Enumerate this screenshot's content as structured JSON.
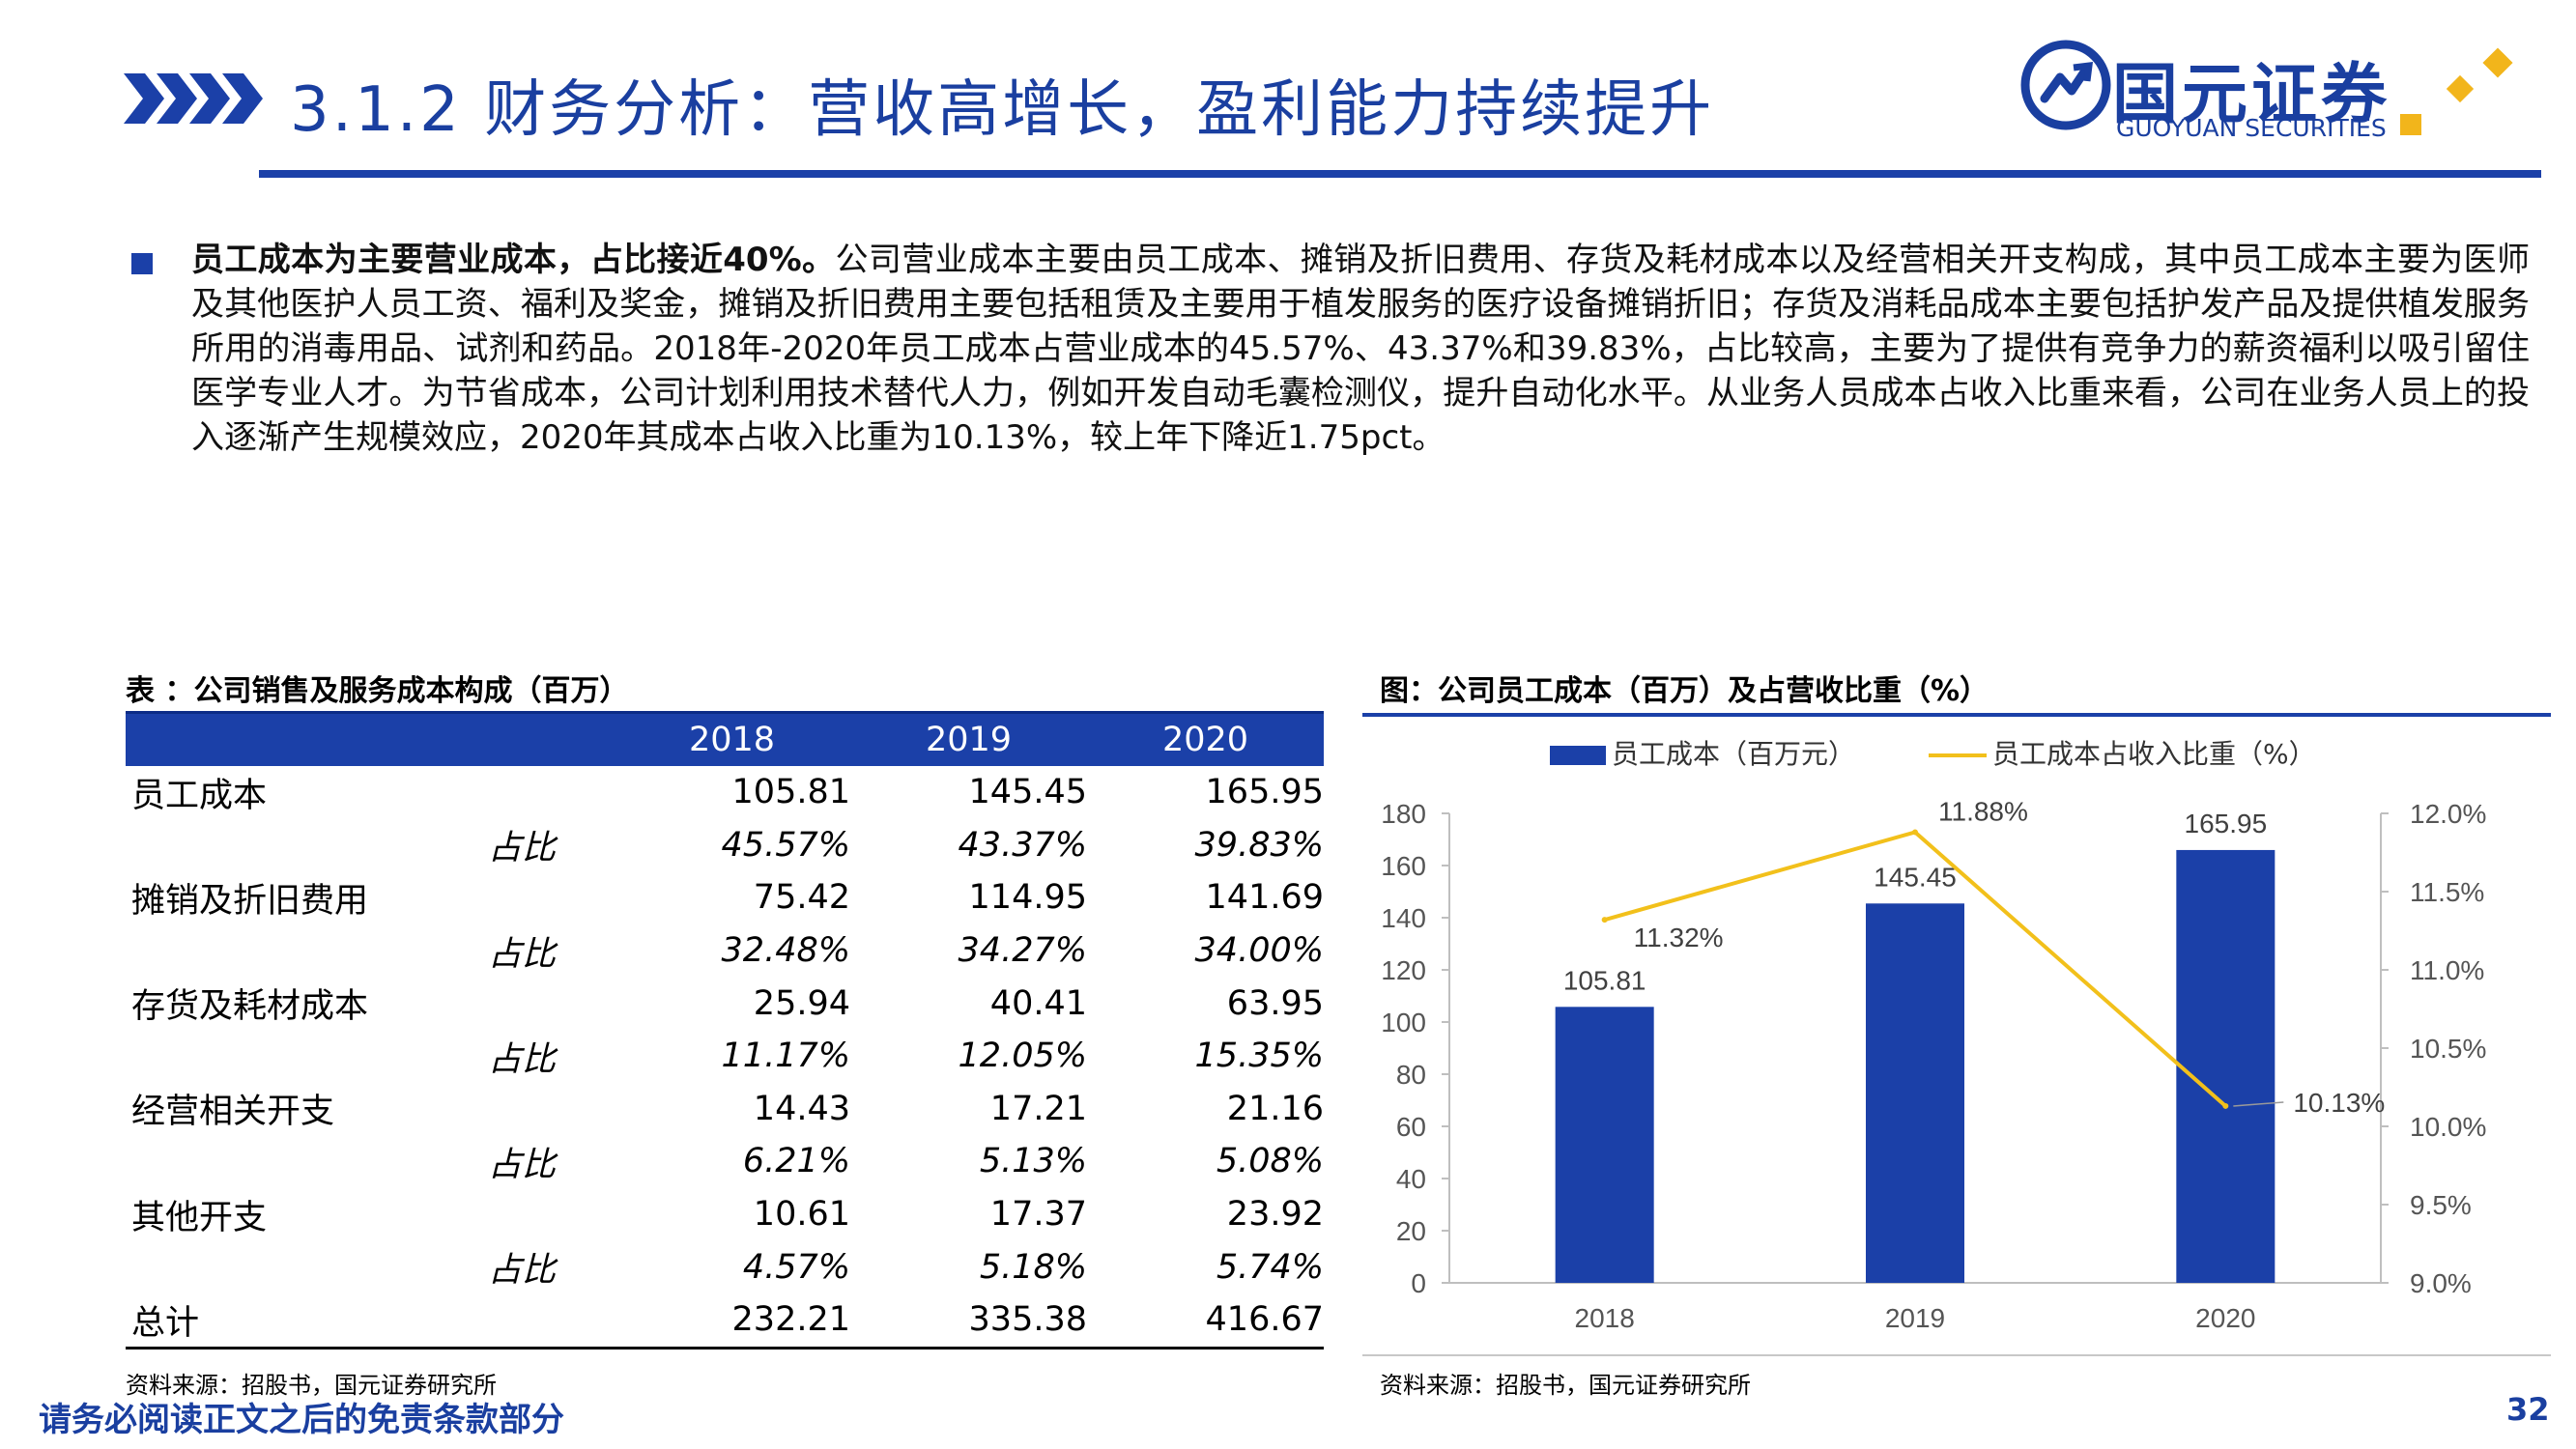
{
  "header": {
    "title": "3.1.2 财务分析：营收高增长，盈利能力持续提升",
    "logo_cn": "国元证券",
    "logo_en": "GUOYUAN SECURITIES"
  },
  "paragraph": {
    "lead": "员工成本为主要营业成本，占比接近40%。",
    "body": "公司营业成本主要由员工成本、摊销及折旧费用、存货及耗材成本以及经营相关开支构成，其中员工成本主要为医师及其他医护人员工资、福利及奖金，摊销及折旧费用主要包括租赁及主要用于植发服务的医疗设备摊销折旧；存货及消耗品成本主要包括护发产品及提供植发服务所用的消毒用品、试剂和药品。2018年-2020年员工成本占营业成本的45.57%、43.37%和39.83%，占比较高，主要为了提供有竞争力的薪资福利以吸引留住医学专业人才。为节省成本，公司计划利用技术替代人力，例如开发自动毛囊检测仪，提升自动化水平。从业务人员成本占收入比重来看，公司在业务人员上的投入逐渐产生规模效应，2020年其成本占收入比重为10.13%，较上年下降近1.75pct。"
  },
  "table": {
    "caption": "表 ：公司销售及服务成本构成（百万）",
    "headers": [
      "",
      "2018",
      "2019",
      "2020"
    ],
    "rows": [
      {
        "label": "员工成本",
        "v": [
          "105.81",
          "145.45",
          "165.95"
        ]
      },
      {
        "label": "占比",
        "v": [
          "45.57%",
          "43.37%",
          "39.83%"
        ]
      },
      {
        "label": "摊销及折旧费用",
        "v": [
          "75.42",
          "114.95",
          "141.69"
        ]
      },
      {
        "label": "占比",
        "v": [
          "32.48%",
          "34.27%",
          "34.00%"
        ]
      },
      {
        "label": "存货及耗材成本",
        "v": [
          "25.94",
          "40.41",
          "63.95"
        ]
      },
      {
        "label": "占比",
        "v": [
          "11.17%",
          "12.05%",
          "15.35%"
        ]
      },
      {
        "label": "经营相关开支",
        "v": [
          "14.43",
          "17.21",
          "21.16"
        ]
      },
      {
        "label": "占比",
        "v": [
          "6.21%",
          "5.13%",
          "5.08%"
        ]
      },
      {
        "label": "其他开支",
        "v": [
          "10.61",
          "17.37",
          "23.92"
        ]
      },
      {
        "label": "占比",
        "v": [
          "4.57%",
          "5.18%",
          "5.74%"
        ]
      },
      {
        "label": "总计",
        "v": [
          "232.21",
          "335.38",
          "416.67"
        ]
      }
    ],
    "source": "资料来源：招股书，国元证券研究所"
  },
  "chart": {
    "caption": "图：公司员工成本（百万）及占营收比重（%）",
    "source": "资料来源：招股书，国元证券研究所"
  },
  "chart_data": {
    "type": "bar",
    "categories": [
      "2018",
      "2019",
      "2020"
    ],
    "series": [
      {
        "name": "员工成本（百万元）",
        "type": "bar",
        "axis": "left",
        "values": [
          105.81,
          145.45,
          165.95
        ],
        "labels": [
          "105.81",
          "145.45",
          "165.95"
        ],
        "color": "#1b40a8"
      },
      {
        "name": "员工成本占收入比重（%）",
        "type": "line",
        "axis": "right",
        "values": [
          11.32,
          11.88,
          10.13
        ],
        "labels": [
          "11.32%",
          "11.88%",
          "10.13%"
        ],
        "color": "#f2c01b"
      }
    ],
    "left_axis": {
      "ylim": [
        0,
        180
      ],
      "ticks": [
        "0",
        "20",
        "40",
        "60",
        "80",
        "100",
        "120",
        "140",
        "160",
        "180"
      ]
    },
    "right_axis": {
      "ylim": [
        9.0,
        12.0
      ],
      "ticks": [
        "9.0%",
        "9.5%",
        "10.0%",
        "10.5%",
        "11.0%",
        "11.5%",
        "12.0%"
      ]
    },
    "legend_position": "top",
    "grid": false
  },
  "footer": {
    "disclaimer": "请务必阅读正文之后的免责条款部分",
    "page_number": "32"
  },
  "colors": {
    "brand_blue": "#1b40a8",
    "accent_gold": "#f2c01b"
  }
}
